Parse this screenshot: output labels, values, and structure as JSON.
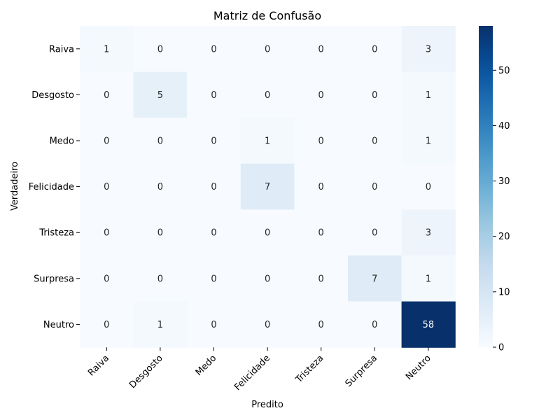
{
  "chart_data": {
    "type": "heatmap",
    "title": "Matriz de Confusão",
    "xlabel": "Predito",
    "ylabel": "Verdadeiro",
    "x_categories": [
      "Raiva",
      "Desgosto",
      "Medo",
      "Felicidade",
      "Tristeza",
      "Surpresa",
      "Neutro"
    ],
    "y_categories": [
      "Raiva",
      "Desgosto",
      "Medo",
      "Felicidade",
      "Tristeza",
      "Surpresa",
      "Neutro"
    ],
    "values": [
      [
        1,
        0,
        0,
        0,
        0,
        0,
        3
      ],
      [
        0,
        5,
        0,
        0,
        0,
        0,
        1
      ],
      [
        0,
        0,
        0,
        1,
        0,
        0,
        1
      ],
      [
        0,
        0,
        0,
        7,
        0,
        0,
        0
      ],
      [
        0,
        0,
        0,
        0,
        0,
        0,
        3
      ],
      [
        0,
        0,
        0,
        0,
        0,
        7,
        1
      ],
      [
        0,
        1,
        0,
        0,
        0,
        0,
        58
      ]
    ],
    "colormap": "Blues",
    "colorbar": {
      "range": [
        0,
        58
      ],
      "ticks": [
        0,
        10,
        20,
        30,
        40,
        50
      ]
    }
  }
}
